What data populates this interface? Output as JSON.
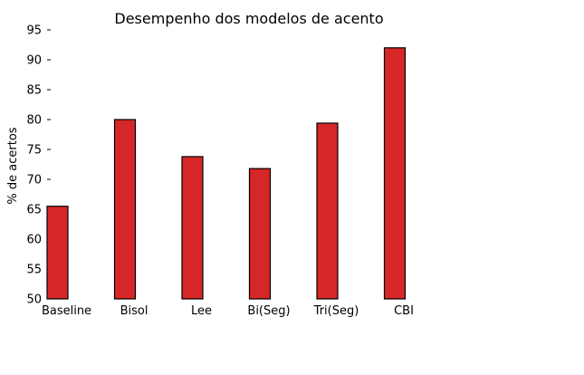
{
  "chart_data": {
    "type": "bar",
    "title": "Desempenho dos modelos de acento",
    "xlabel": "",
    "ylabel": "% de acertos",
    "categories": [
      "Baseline",
      "Bisol",
      "Lee",
      "Bi(Seg)",
      "Tri(Seg)",
      "CBI"
    ],
    "values": [
      65.5,
      80,
      73.8,
      71.8,
      79.4,
      92
    ],
    "ylim": [
      50,
      95
    ],
    "yticks": [
      50,
      55,
      60,
      65,
      70,
      75,
      80,
      85,
      90,
      95
    ],
    "grid": false,
    "bar_color": "#d62728",
    "edge_color": "#000000"
  }
}
